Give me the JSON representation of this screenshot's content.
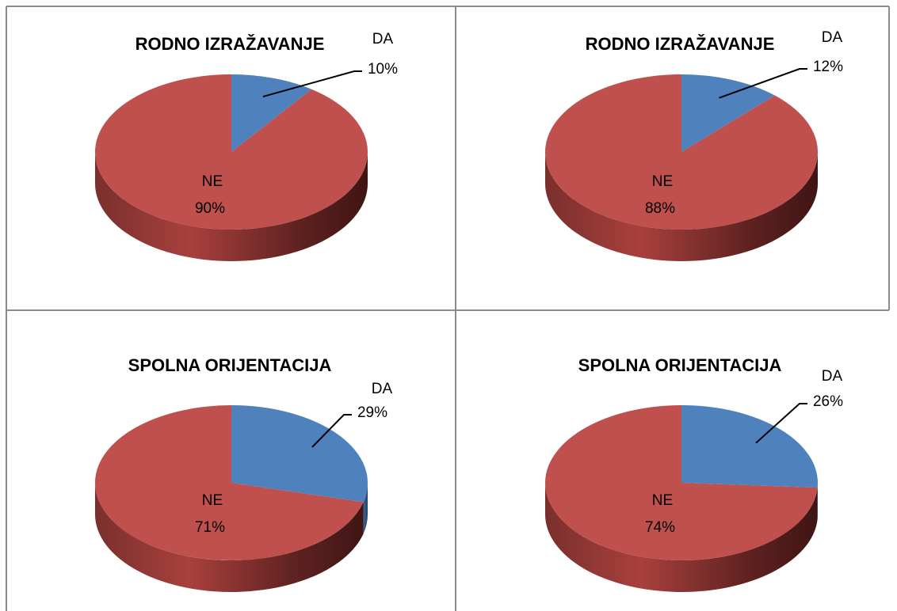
{
  "chart_data": [
    {
      "type": "pie",
      "title": "RODNO IZRAŽAVANJE",
      "categories": [
        "DA",
        "NE"
      ],
      "values": [
        10,
        90
      ],
      "value_labels": [
        "10%",
        "90%"
      ],
      "colors": [
        "#4f81bd",
        "#c0504d"
      ]
    },
    {
      "type": "pie",
      "title": "RODNO IZRAŽAVANJE",
      "categories": [
        "DA",
        "NE"
      ],
      "values": [
        12,
        88
      ],
      "value_labels": [
        "12%",
        "88%"
      ],
      "colors": [
        "#4f81bd",
        "#c0504d"
      ]
    },
    {
      "type": "pie",
      "title": "SPOLNA ORIJENTACIJA",
      "categories": [
        "DA",
        "NE"
      ],
      "values": [
        29,
        71
      ],
      "value_labels": [
        "29%",
        "71%"
      ],
      "colors": [
        "#4f81bd",
        "#c0504d"
      ]
    },
    {
      "type": "pie",
      "title": "SPOLNA ORIJENTACIJA",
      "categories": [
        "DA",
        "NE"
      ],
      "values": [
        26,
        74
      ],
      "value_labels": [
        "26%",
        "74%"
      ],
      "colors": [
        "#4f81bd",
        "#c0504d"
      ]
    }
  ]
}
